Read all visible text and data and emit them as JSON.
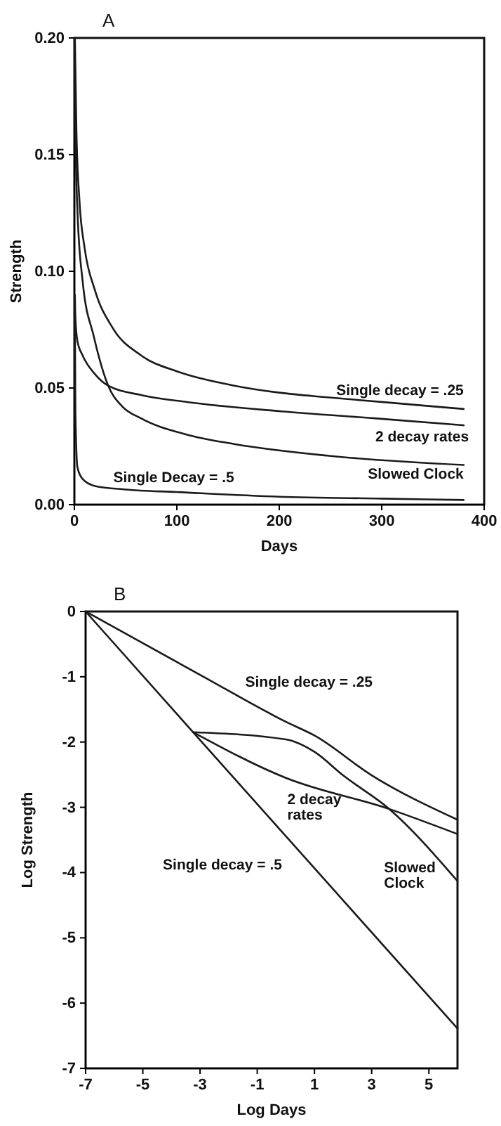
{
  "chart_data": [
    {
      "type": "line",
      "title": "A",
      "xlabel": "Days",
      "ylabel": "Strength",
      "xlim": [
        0,
        400
      ],
      "ylim": [
        0,
        0.2
      ],
      "xticks": [
        0,
        100,
        200,
        300,
        400
      ],
      "yticks": [
        {
          "value": 0,
          "label": "0.00"
        },
        {
          "value": 0.05,
          "label": "0.05"
        },
        {
          "value": 0.1,
          "label": "0.10"
        },
        {
          "value": 0.15,
          "label": "0.15"
        },
        {
          "value": 0.2,
          "label": "0.20"
        }
      ],
      "series": [
        {
          "name": "Single decay = .25",
          "color": "#1a1a1a",
          "x": [
            0.5,
            2,
            5,
            10,
            20,
            37,
            65,
            101,
            156,
            200,
            247,
            300,
            380
          ],
          "values": [
            0.2,
            0.16,
            0.13,
            0.11,
            0.092,
            0.076,
            0.064,
            0.057,
            0.051,
            0.048,
            0.046,
            0.044,
            0.041
          ]
        },
        {
          "name": "2 decay rates",
          "color": "#1a1a1a",
          "x": [
            0.5,
            1,
            3,
            8,
            20,
            33,
            65,
            110,
            202,
            293,
            380
          ],
          "values": [
            0.09,
            0.08,
            0.07,
            0.064,
            0.056,
            0.051,
            0.047,
            0.044,
            0.04,
            0.037,
            0.034
          ]
        },
        {
          "name": "Slowed Clock",
          "color": "#1a1a1a",
          "x": [
            0.5,
            1,
            3,
            8,
            19,
            33,
            47,
            65,
            110,
            156,
            247,
            380
          ],
          "values": [
            0.19,
            0.16,
            0.126,
            0.096,
            0.072,
            0.051,
            0.042,
            0.037,
            0.03,
            0.026,
            0.021,
            0.017
          ]
        },
        {
          "name": "Single Decay = .5",
          "color": "#1a1a1a",
          "x": [
            0.5,
            1,
            3,
            8,
            20,
            50,
            100,
            200,
            300,
            380
          ],
          "values": [
            0.08,
            0.04,
            0.016,
            0.011,
            0.008,
            0.0065,
            0.0054,
            0.0034,
            0.0026,
            0.002
          ]
        }
      ]
    },
    {
      "type": "line",
      "title": "B",
      "xlabel": "Log Days",
      "ylabel": "Log Strength",
      "xlim": [
        -7,
        6
      ],
      "ylim": [
        -7,
        0
      ],
      "xticks": [
        -7,
        -5,
        -3,
        -1,
        1,
        3,
        5
      ],
      "yticks": [
        0,
        -1,
        -2,
        -3,
        -4,
        -5,
        -6,
        -7
      ],
      "series": [
        {
          "name": "Single decay = .25",
          "color": "#1a1a1a",
          "x": [
            -7,
            -3,
            0,
            1,
            3,
            6
          ],
          "values": [
            0,
            -0.97,
            -1.69,
            -1.9,
            -2.51,
            -3.19
          ]
        },
        {
          "name": "2 decay rates",
          "color": "#1a1a1a",
          "x": [
            -3.24,
            0,
            3.64,
            6
          ],
          "values": [
            -1.85,
            -2.55,
            -3.03,
            -3.41
          ]
        },
        {
          "name": "Slowed Clock",
          "color": "#1a1a1a",
          "x": [
            -3.24,
            0,
            1,
            2,
            3.6,
            6
          ],
          "values": [
            -1.85,
            -1.96,
            -2.15,
            -2.51,
            -3.02,
            -4.13
          ]
        },
        {
          "name": "Single decay = .5",
          "color": "#1a1a1a",
          "x": [
            -7,
            -3.24,
            6
          ],
          "values": [
            0,
            -1.85,
            -6.39
          ]
        }
      ]
    }
  ]
}
